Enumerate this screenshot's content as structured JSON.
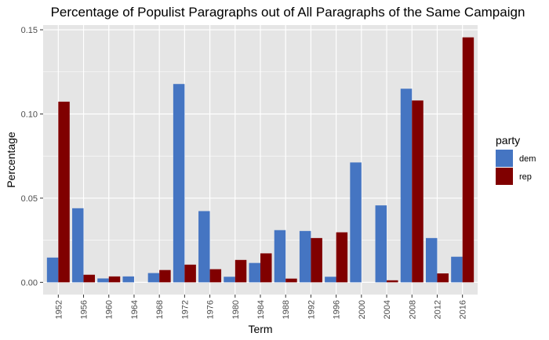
{
  "chart_data": {
    "type": "bar",
    "title": "Percentage of Populist Paragraphs out of All Paragraphs of the Same Campaign",
    "xlabel": "Term",
    "ylabel": "Percentage",
    "categories": [
      "1952",
      "1956",
      "1960",
      "1964",
      "1968",
      "1972",
      "1976",
      "1980",
      "1984",
      "1988",
      "1992",
      "1996",
      "2000",
      "2004",
      "2008",
      "2012",
      "2016"
    ],
    "series": [
      {
        "name": "dem",
        "color": "#4575c2",
        "values": [
          0.0147,
          0.044,
          0.0023,
          0.0035,
          0.0055,
          0.1178,
          0.0423,
          0.0033,
          0.0115,
          0.031,
          0.0305,
          0.0033,
          0.0712,
          0.0457,
          0.115,
          0.0263,
          0.0152
        ]
      },
      {
        "name": "rep",
        "color": "#800000",
        "values": [
          0.1073,
          0.0045,
          0.0035,
          0.0,
          0.0073,
          0.0105,
          0.0078,
          0.0133,
          0.0172,
          0.0022,
          0.0263,
          0.0297,
          0.0,
          0.0012,
          0.108,
          0.0053,
          0.1455
        ]
      }
    ],
    "ylim": [
      -0.00727,
      0.1528
    ],
    "yticks": [
      0.0,
      0.05,
      0.1,
      0.15
    ],
    "ytick_labels": [
      "0.00",
      "0.05",
      "0.10",
      "0.15"
    ],
    "legend": {
      "title": "party",
      "position": "right"
    },
    "grid": true,
    "panel_background": "#e5e5e5",
    "grid_color": "#ffffff"
  }
}
